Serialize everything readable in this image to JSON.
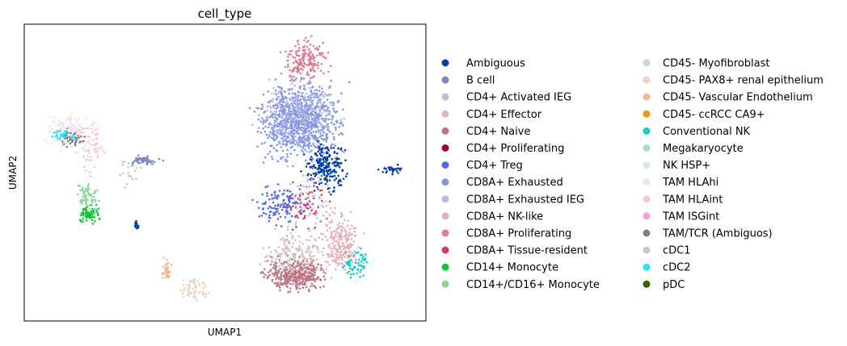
{
  "chart_data": {
    "type": "scatter",
    "title": "cell_type",
    "xlabel": "UMAP1",
    "ylabel": "UMAP2",
    "grid": false,
    "legend_placement": "right-outside",
    "xlim": [
      0,
      100
    ],
    "ylim": [
      0,
      100
    ],
    "categories": [
      {
        "name": "Ambiguous",
        "color": "#023fa5"
      },
      {
        "name": "B cell",
        "color": "#7d87b9"
      },
      {
        "name": "CD4+ Activated IEG",
        "color": "#bec1d4"
      },
      {
        "name": "CD4+ Effector",
        "color": "#d6bcc0"
      },
      {
        "name": "CD4+ Naive",
        "color": "#bb7784"
      },
      {
        "name": "CD4+ Proliferating",
        "color": "#8e063b"
      },
      {
        "name": "CD4+ Treg",
        "color": "#4a6fe3"
      },
      {
        "name": "CD8A+ Exhausted",
        "color": "#8595e1"
      },
      {
        "name": "CD8A+ Exhausted IEG",
        "color": "#b5bbe3"
      },
      {
        "name": "CD8A+ NK-like",
        "color": "#e6afb9"
      },
      {
        "name": "CD8A+ Proliferating",
        "color": "#e07b91"
      },
      {
        "name": "CD8A+ Tissue-resident",
        "color": "#d33f6a"
      },
      {
        "name": "CD14+ Monocyte",
        "color": "#11c638"
      },
      {
        "name": "CD14+/CD16+ Monocyte",
        "color": "#8dd593"
      },
      {
        "name": "CD45- Myofibroblast",
        "color": "#c6dec7"
      },
      {
        "name": "CD45- PAX8+ renal epithelium",
        "color": "#ead3c6"
      },
      {
        "name": "CD45- Vascular Endothelium",
        "color": "#f0b98d"
      },
      {
        "name": "CD45- ccRCC CA9+",
        "color": "#ef9708"
      },
      {
        "name": "Conventional NK",
        "color": "#0fcfc0"
      },
      {
        "name": "Megakaryocyte",
        "color": "#9cded6"
      },
      {
        "name": "NK HSP+",
        "color": "#d5eae7"
      },
      {
        "name": "TAM HLAhi",
        "color": "#f3e1eb"
      },
      {
        "name": "TAM HLAint",
        "color": "#f6c4e1"
      },
      {
        "name": "TAM ISGint",
        "color": "#f79cd4"
      },
      {
        "name": "TAM/TCR (Ambiguos)",
        "color": "#7f7f7f"
      },
      {
        "name": "cDC1",
        "color": "#c7c7c7"
      },
      {
        "name": "cDC2",
        "color": "#1ce6ff"
      },
      {
        "name": "pDC",
        "color": "#336600"
      }
    ],
    "clusters": [
      {
        "category": 7,
        "x": [
          55,
          82
        ],
        "y": [
          50,
          85
        ],
        "n": 900
      },
      {
        "category": 8,
        "x": [
          55,
          82
        ],
        "y": [
          55,
          85
        ],
        "n": 250
      },
      {
        "category": 10,
        "x": [
          62,
          78
        ],
        "y": [
          78,
          98
        ],
        "n": 180
      },
      {
        "category": 0,
        "x": [
          68,
          82
        ],
        "y": [
          42,
          62
        ],
        "n": 220
      },
      {
        "category": 0,
        "x": [
          88,
          95
        ],
        "y": [
          49,
          53
        ],
        "n": 30
      },
      {
        "category": 6,
        "x": [
          56,
          72
        ],
        "y": [
          30,
          48
        ],
        "n": 120
      },
      {
        "category": 11,
        "x": [
          62,
          78
        ],
        "y": [
          28,
          50
        ],
        "n": 70
      },
      {
        "category": 4,
        "x": [
          57,
          78
        ],
        "y": [
          8,
          24
        ],
        "n": 380
      },
      {
        "category": 3,
        "x": [
          57,
          80
        ],
        "y": [
          14,
          32
        ],
        "n": 160
      },
      {
        "category": 9,
        "x": [
          72,
          85
        ],
        "y": [
          12,
          40
        ],
        "n": 220
      },
      {
        "category": 18,
        "x": [
          79,
          87
        ],
        "y": [
          12,
          26
        ],
        "n": 60
      },
      {
        "category": 2,
        "x": [
          60,
          82
        ],
        "y": [
          20,
          60
        ],
        "n": 60
      },
      {
        "category": 21,
        "x": [
          4,
          18
        ],
        "y": [
          55,
          72
        ],
        "n": 170
      },
      {
        "category": 22,
        "x": [
          12,
          22
        ],
        "y": [
          48,
          70
        ],
        "n": 60
      },
      {
        "category": 24,
        "x": [
          8,
          16
        ],
        "y": [
          58,
          64
        ],
        "n": 40
      },
      {
        "category": 26,
        "x": [
          6,
          14
        ],
        "y": [
          60,
          66
        ],
        "n": 30
      },
      {
        "category": 1,
        "x": [
          25,
          35
        ],
        "y": [
          52,
          56
        ],
        "n": 55
      },
      {
        "category": 13,
        "x": [
          12,
          20
        ],
        "y": [
          36,
          48
        ],
        "n": 60
      },
      {
        "category": 12,
        "x": [
          12,
          20
        ],
        "y": [
          32,
          40
        ],
        "n": 70
      },
      {
        "category": 0,
        "x": [
          27,
          29
        ],
        "y": [
          30,
          35
        ],
        "n": 15
      },
      {
        "category": 16,
        "x": [
          34,
          37
        ],
        "y": [
          12,
          22
        ],
        "n": 40
      },
      {
        "category": 15,
        "x": [
          38,
          47
        ],
        "y": [
          5,
          16
        ],
        "n": 60
      },
      {
        "category": 25,
        "x": [
          22,
          30
        ],
        "y": [
          40,
          60
        ],
        "n": 20
      }
    ]
  }
}
